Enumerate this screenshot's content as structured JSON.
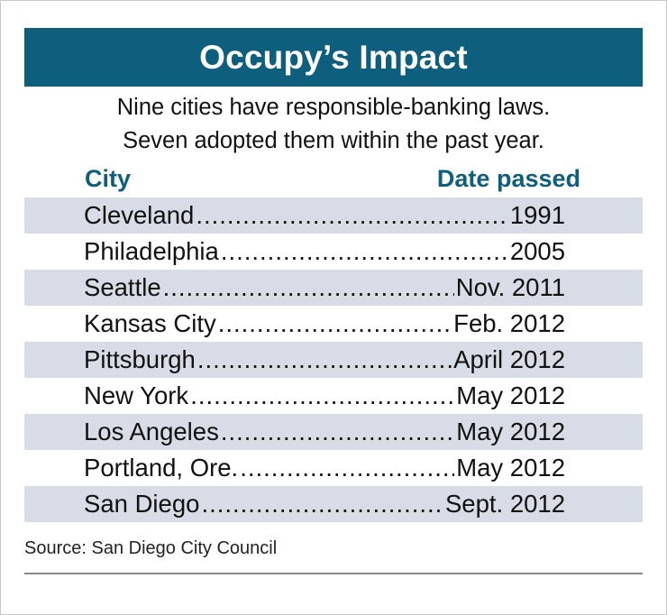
{
  "title": "Occupy’s Impact",
  "subtitle_line1": "Nine cities have responsible-banking laws.",
  "subtitle_line2": "Seven adopted them within the past year.",
  "source": "Source: San Diego City Council",
  "colors": {
    "banner": "#0e5f7d",
    "header_text": "#0e5f7d",
    "row_shade": "#d7dce6"
  },
  "chart_data": {
    "type": "table",
    "title": "Occupy’s Impact",
    "columns": [
      "City",
      "Date passed"
    ],
    "rows": [
      {
        "city": "Cleveland",
        "date": "1991"
      },
      {
        "city": "Philadelphia",
        "date": "2005"
      },
      {
        "city": "Seattle",
        "date": "Nov. 2011"
      },
      {
        "city": "Kansas City",
        "date": "Feb. 2012"
      },
      {
        "city": "Pittsburgh",
        "date": "April 2012"
      },
      {
        "city": "New York",
        "date": "May 2012"
      },
      {
        "city": "Los Angeles",
        "date": "May 2012"
      },
      {
        "city": "Portland, Ore.",
        "date": "May 2012"
      },
      {
        "city": "San Diego",
        "date": "Sept. 2012"
      }
    ]
  }
}
